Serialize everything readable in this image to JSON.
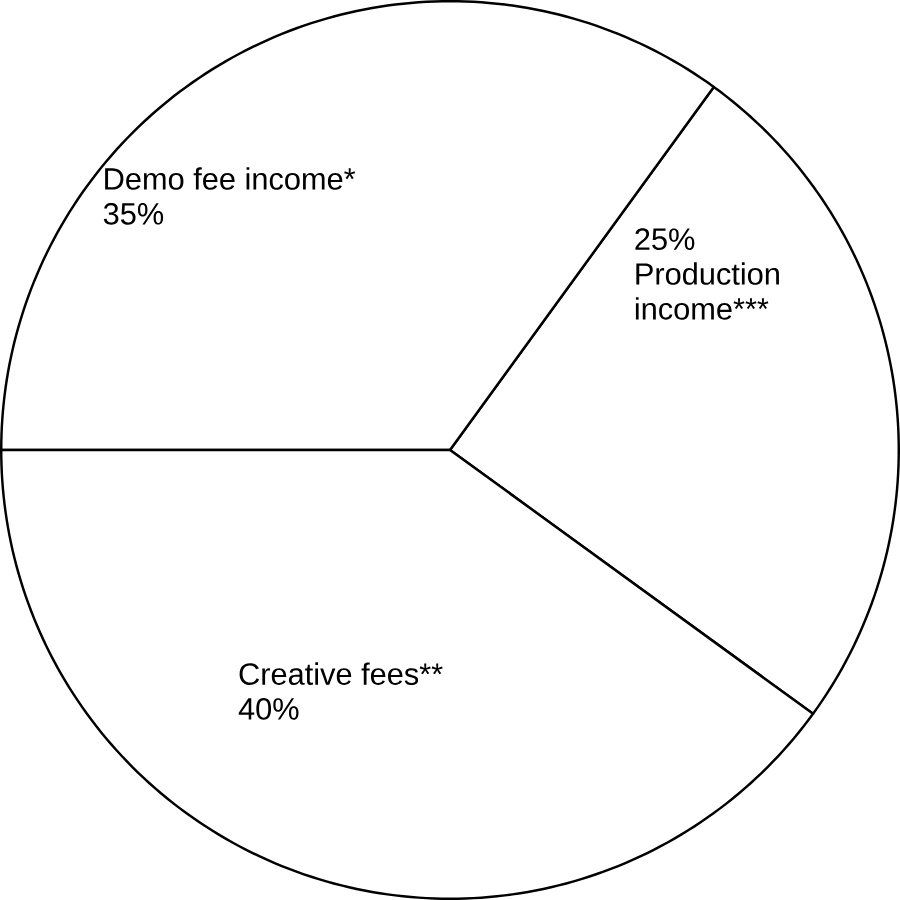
{
  "chart_data": {
    "type": "pie",
    "categories": [
      "Production income***",
      "Demo fee income*",
      "Creative fees**"
    ],
    "values": [
      25,
      35,
      40
    ],
    "value_labels": [
      "25%",
      "35%",
      "40%"
    ],
    "colors": [
      "#ffffff",
      "#ffffff",
      "#ffffff"
    ]
  }
}
